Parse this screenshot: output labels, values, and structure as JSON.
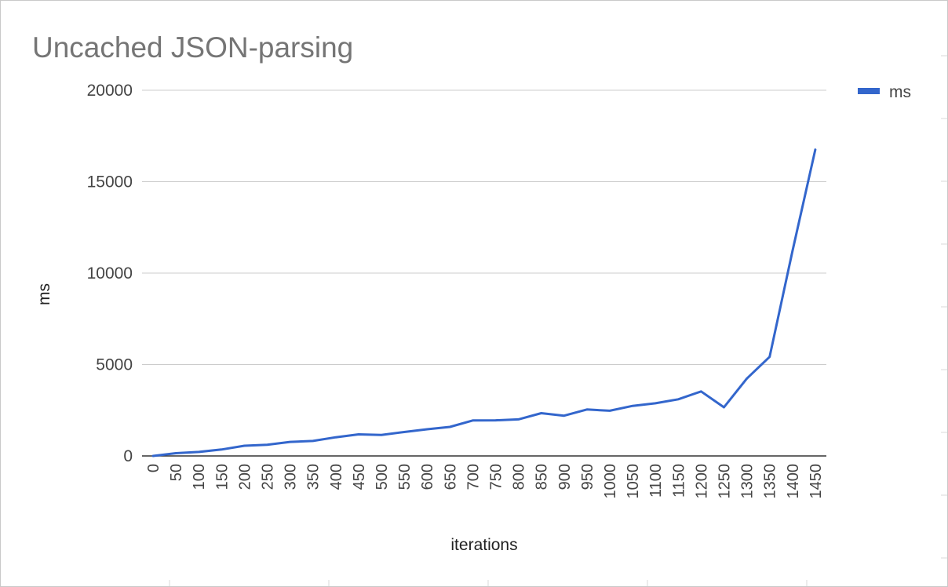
{
  "chart_data": {
    "type": "line",
    "title": "Uncached JSON-parsing",
    "xlabel": "iterations",
    "ylabel": "ms",
    "ylim": [
      0,
      20000
    ],
    "yticks": [
      "0",
      "5000",
      "10000",
      "15000",
      "20000"
    ],
    "categories": [
      "0",
      "50",
      "100",
      "150",
      "200",
      "250",
      "300",
      "350",
      "400",
      "450",
      "500",
      "550",
      "600",
      "650",
      "700",
      "750",
      "800",
      "850",
      "900",
      "950",
      "1000",
      "1050",
      "1100",
      "1150",
      "1200",
      "1250",
      "1300",
      "1350",
      "1400",
      "1450"
    ],
    "series": [
      {
        "name": "ms",
        "color": "#3366cc",
        "values": [
          0,
          150,
          220,
          350,
          560,
          610,
          770,
          820,
          1020,
          1180,
          1150,
          1310,
          1460,
          1590,
          1940,
          1950,
          2000,
          2340,
          2200,
          2540,
          2470,
          2740,
          2880,
          3100,
          3530,
          2660,
          4230,
          5420,
          11200,
          16750
        ]
      }
    ],
    "legend": {
      "position": "right",
      "entries": [
        "ms"
      ]
    },
    "grid": true
  }
}
